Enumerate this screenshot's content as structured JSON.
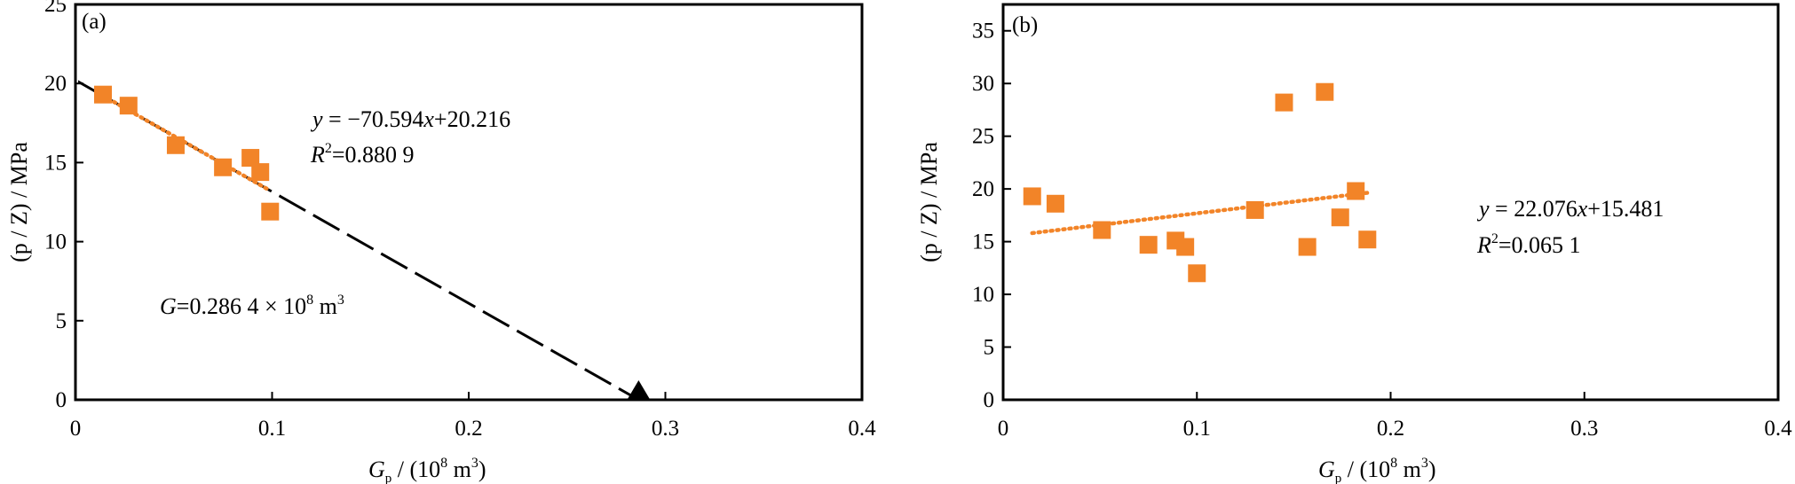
{
  "colors": {
    "marker": "#F28428",
    "trend": "#F28428",
    "extrapolation": "#000000",
    "frame": "#000000"
  },
  "chart_data": [
    {
      "panel": "(a)",
      "type": "scatter",
      "title": "",
      "xlabel": {
        "main": "G",
        "sub": "p",
        "rest": " / (10",
        "sup": "8",
        "unit": " m",
        "unit_sup": "3",
        "close": ")"
      },
      "ylabel": "(p / Z) / MPa",
      "xlim": [
        0,
        0.4
      ],
      "ylim": [
        0,
        25
      ],
      "xticks": [
        0,
        0.1,
        0.2,
        0.3,
        0.4
      ],
      "xtick_labels": [
        "0",
        "0.1",
        "0.2",
        "0.3",
        "0.4"
      ],
      "yticks": [
        0,
        5,
        10,
        15,
        20,
        25
      ],
      "ytick_labels": [
        "0",
        "5",
        "10",
        "15",
        "20",
        "25"
      ],
      "grid": false,
      "points": [
        {
          "x": 0.014,
          "y": 19.3
        },
        {
          "x": 0.027,
          "y": 18.6
        },
        {
          "x": 0.051,
          "y": 16.1
        },
        {
          "x": 0.075,
          "y": 14.7
        },
        {
          "x": 0.089,
          "y": 15.3
        },
        {
          "x": 0.094,
          "y": 14.4
        },
        {
          "x": 0.099,
          "y": 11.9
        }
      ],
      "trendline": {
        "slope": -70.594,
        "intercept": 20.216,
        "x_range": [
          0.014,
          0.099
        ],
        "style": "dotted"
      },
      "extrapolation": {
        "x_start": 0.0,
        "y_start": 20.216,
        "x_end": 0.2864,
        "y_end": 0.0,
        "style": "dashed",
        "end_marker": "triangle"
      },
      "annotations": {
        "equation": {
          "prefix": "y",
          "body": " = −70.594",
          "var": "x",
          "tail": "+20.216"
        },
        "r2": {
          "prefix": "R",
          "sup": "2",
          "value": "=0.880 9"
        },
        "reserve": {
          "prefix": "G",
          "value": "=0.286 4 × 10",
          "sup": "8",
          "unit": " m",
          "unit_sup": "3"
        }
      }
    },
    {
      "panel": "(b)",
      "type": "scatter",
      "title": "",
      "xlabel": {
        "main": "G",
        "sub": "p",
        "rest": " / (10",
        "sup": "8",
        "unit": " m",
        "unit_sup": "3",
        "close": ")"
      },
      "ylabel": "(p / Z) / MPa",
      "xlim": [
        0,
        0.4
      ],
      "ylim": [
        0,
        37.5
      ],
      "xticks": [
        0,
        0.1,
        0.2,
        0.3,
        0.4
      ],
      "xtick_labels": [
        "0",
        "0.1",
        "0.2",
        "0.3",
        "0.4"
      ],
      "yticks": [
        0,
        5,
        10,
        15,
        20,
        25,
        30,
        35
      ],
      "ytick_labels": [
        "0",
        "5",
        "10",
        "15",
        "20",
        "25",
        "30",
        "35"
      ],
      "grid": false,
      "points": [
        {
          "x": 0.015,
          "y": 19.3
        },
        {
          "x": 0.027,
          "y": 18.6
        },
        {
          "x": 0.051,
          "y": 16.1
        },
        {
          "x": 0.075,
          "y": 14.7
        },
        {
          "x": 0.089,
          "y": 15.1
        },
        {
          "x": 0.094,
          "y": 14.5
        },
        {
          "x": 0.1,
          "y": 12.0
        },
        {
          "x": 0.13,
          "y": 18.0
        },
        {
          "x": 0.145,
          "y": 28.2
        },
        {
          "x": 0.157,
          "y": 14.5
        },
        {
          "x": 0.166,
          "y": 29.2
        },
        {
          "x": 0.174,
          "y": 17.3
        },
        {
          "x": 0.182,
          "y": 19.8
        },
        {
          "x": 0.188,
          "y": 15.2
        }
      ],
      "trendline": {
        "slope": 22.076,
        "intercept": 15.481,
        "x_range": [
          0.015,
          0.188
        ],
        "style": "dotted"
      },
      "annotations": {
        "equation": {
          "prefix": "y",
          "body": " = 22.076",
          "var": "x",
          "tail": "+15.481"
        },
        "r2": {
          "prefix": "R",
          "sup": "2",
          "value": "=0.065 1"
        }
      }
    }
  ]
}
